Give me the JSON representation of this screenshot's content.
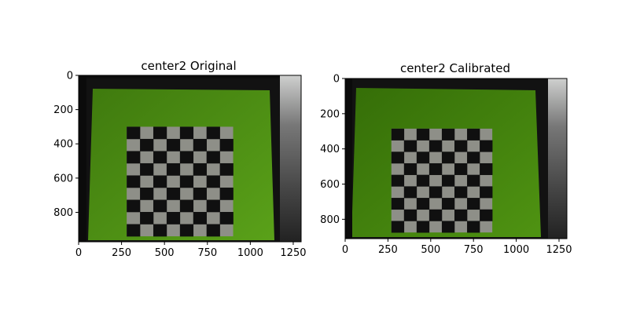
{
  "chart_data": [
    {
      "type": "image",
      "title": "center2 Original",
      "xlim": [
        0,
        1296
      ],
      "ylim": [
        972,
        0
      ],
      "xticks": [
        0,
        250,
        500,
        750,
        1000,
        1250
      ],
      "yticks": [
        0,
        200,
        400,
        600,
        800
      ],
      "checkerboard": {
        "rows": 9,
        "cols": 8,
        "x_range": [
          280,
          900
        ],
        "y_range": [
          300,
          940
        ]
      }
    },
    {
      "type": "image",
      "title": "center2 Calibrated",
      "xlim": [
        0,
        1296
      ],
      "ylim": [
        910,
        0
      ],
      "xticks": [
        0,
        250,
        500,
        750,
        1000,
        1250
      ],
      "yticks": [
        0,
        200,
        400,
        600,
        800
      ],
      "checkerboard": {
        "rows": 9,
        "cols": 8,
        "x_range": [
          270,
          860
        ],
        "y_range": [
          285,
          875
        ]
      }
    }
  ],
  "colors": {
    "board_green": "#4f8f13",
    "board_green_dark": "#356e08",
    "background_dark": "#121212",
    "square_dark": "#101010",
    "square_light": "#8e8f88"
  }
}
